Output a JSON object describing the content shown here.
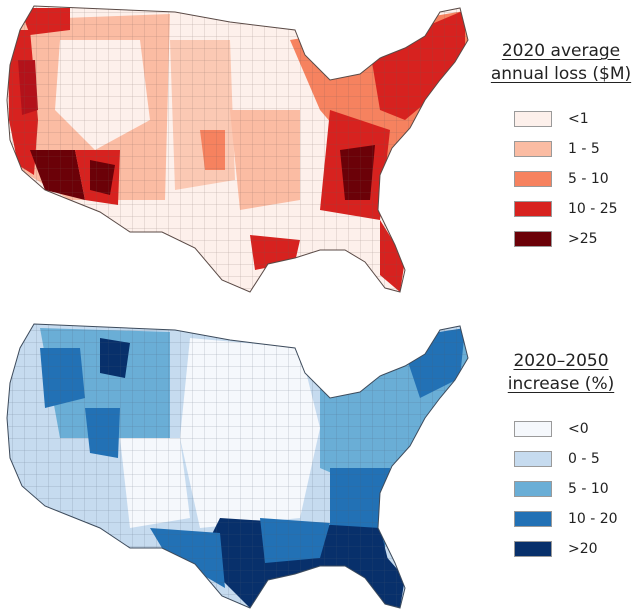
{
  "maps": [
    {
      "legend": {
        "title_line1": "2020 average",
        "title_line2": "annual loss ($M)",
        "items": [
          {
            "label": "<1",
            "color": "#fdf0eb"
          },
          {
            "label": "1 - 5",
            "color": "#fbbca3"
          },
          {
            "label": "5 - 10",
            "color": "#f6825f"
          },
          {
            "label": "10 - 25",
            "color": "#d7221f"
          },
          {
            "label": ">25",
            "color": "#6b0108"
          }
        ]
      }
    },
    {
      "legend": {
        "title_line1": "2020–2050",
        "title_line2": "increase (%)",
        "items": [
          {
            "label": "<0",
            "color": "#f5f8fc"
          },
          {
            "label": "0 - 5",
            "color": "#c6dbef"
          },
          {
            "label": "5 - 10",
            "color": "#6aaed6"
          },
          {
            "label": "10 - 20",
            "color": "#2271b5"
          },
          {
            "label": ">20",
            "color": "#08306b"
          }
        ]
      }
    }
  ]
}
